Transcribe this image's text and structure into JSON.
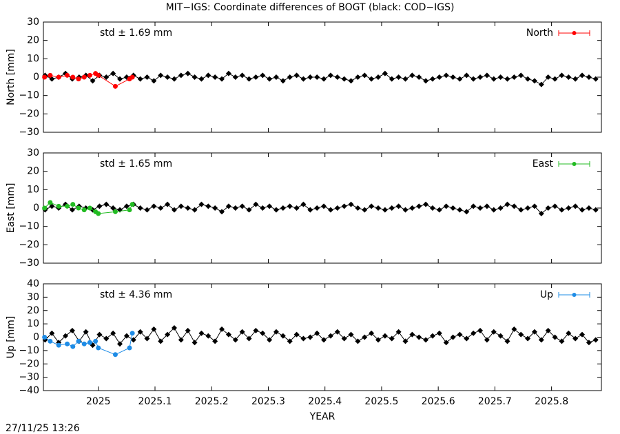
{
  "chart_data": [
    {
      "type": "line",
      "title": "MIT−IGS: Coordinate differences of BOGT (black: COD−IGS)",
      "ylabel": "North [mm]",
      "annotation": "std ± 1.69 mm",
      "annotation_color": "#ff0000",
      "xlim": [
        2024.903,
        2025.888
      ],
      "xticks": [
        2025,
        2025.1,
        2025.2,
        2025.3,
        2025.4,
        2025.5,
        2025.6,
        2025.7,
        2025.8
      ],
      "ylim": [
        -30,
        30
      ],
      "yticks": [
        {
          "value": -30,
          "label": "−30"
        },
        {
          "value": -20,
          "label": "−20"
        },
        {
          "value": -10,
          "label": "−10"
        },
        0,
        10,
        20,
        30
      ],
      "legend": "upper right",
      "series": [
        {
          "color": "#000000",
          "x": [
            2024.906,
            2024.918,
            2024.93,
            2024.942,
            2024.954,
            2024.966,
            2024.978,
            2024.99,
            2025.002,
            2025.014,
            2025.026,
            2025.038,
            2025.05,
            2025.062,
            2025.074,
            2025.086,
            2025.098,
            2025.11,
            2025.122,
            2025.134,
            2025.146,
            2025.158,
            2025.17,
            2025.182,
            2025.194,
            2025.206,
            2025.218,
            2025.23,
            2025.242,
            2025.254,
            2025.266,
            2025.278,
            2025.29,
            2025.302,
            2025.314,
            2025.326,
            2025.338,
            2025.35,
            2025.362,
            2025.374,
            2025.386,
            2025.398,
            2025.41,
            2025.422,
            2025.434,
            2025.446,
            2025.458,
            2025.47,
            2025.482,
            2025.494,
            2025.506,
            2025.518,
            2025.53,
            2025.542,
            2025.554,
            2025.566,
            2025.578,
            2025.59,
            2025.602,
            2025.614,
            2025.626,
            2025.638,
            2025.65,
            2025.662,
            2025.674,
            2025.686,
            2025.698,
            2025.71,
            2025.722,
            2025.734,
            2025.746,
            2025.758,
            2025.77,
            2025.782,
            2025.794,
            2025.806,
            2025.818,
            2025.83,
            2025.842,
            2025.854,
            2025.866,
            2025.878
          ],
          "values": [
            1,
            -1,
            0,
            2,
            -1,
            0,
            1,
            -2,
            1,
            0,
            2,
            -1,
            0,
            1,
            -1,
            0,
            -2,
            1,
            0,
            -1,
            1,
            2,
            0,
            -1,
            1,
            0,
            -1,
            2,
            0,
            1,
            -1,
            0,
            1,
            -1,
            0,
            -2,
            0,
            1,
            -1,
            0,
            0,
            -1,
            1,
            0,
            -1,
            -2,
            0,
            1,
            -1,
            0,
            2,
            -1,
            0,
            -1,
            1,
            0,
            -2,
            -1,
            0,
            1,
            0,
            -1,
            1,
            -1,
            0,
            1,
            -1,
            0,
            -1,
            0,
            1,
            -1,
            -2,
            -4,
            0,
            -1,
            1,
            0,
            -1,
            1,
            0,
            -1
          ]
        },
        {
          "name": "North",
          "color": "#ff0000",
          "x": [
            2024.905,
            2024.915,
            2024.93,
            2024.945,
            2024.955,
            2024.965,
            2024.975,
            2024.985,
            2024.995,
            2025.0,
            2025.03,
            2025.055,
            2025.06
          ],
          "values": [
            0,
            1,
            0,
            1,
            0,
            -1,
            0,
            1,
            2,
            1,
            -5,
            -1,
            0
          ]
        }
      ]
    },
    {
      "type": "line",
      "ylabel": "East [mm]",
      "annotation": "std ± 1.65 mm",
      "annotation_color": "#22bb22",
      "xlim": [
        2024.903,
        2025.888
      ],
      "xticks": [
        2025,
        2025.1,
        2025.2,
        2025.3,
        2025.4,
        2025.5,
        2025.6,
        2025.7,
        2025.8
      ],
      "ylim": [
        -30,
        30
      ],
      "yticks": [
        {
          "value": -30,
          "label": "−30"
        },
        {
          "value": -20,
          "label": "−20"
        },
        {
          "value": -10,
          "label": "−10"
        },
        0,
        10,
        20,
        30
      ],
      "legend": "upper right",
      "series": [
        {
          "color": "#000000",
          "x": [
            2024.906,
            2024.918,
            2024.93,
            2024.942,
            2024.954,
            2024.966,
            2024.978,
            2024.99,
            2025.002,
            2025.014,
            2025.026,
            2025.038,
            2025.05,
            2025.062,
            2025.074,
            2025.086,
            2025.098,
            2025.11,
            2025.122,
            2025.134,
            2025.146,
            2025.158,
            2025.17,
            2025.182,
            2025.194,
            2025.206,
            2025.218,
            2025.23,
            2025.242,
            2025.254,
            2025.266,
            2025.278,
            2025.29,
            2025.302,
            2025.314,
            2025.326,
            2025.338,
            2025.35,
            2025.362,
            2025.374,
            2025.386,
            2025.398,
            2025.41,
            2025.422,
            2025.434,
            2025.446,
            2025.458,
            2025.47,
            2025.482,
            2025.494,
            2025.506,
            2025.518,
            2025.53,
            2025.542,
            2025.554,
            2025.566,
            2025.578,
            2025.59,
            2025.602,
            2025.614,
            2025.626,
            2025.638,
            2025.65,
            2025.662,
            2025.674,
            2025.686,
            2025.698,
            2025.71,
            2025.722,
            2025.734,
            2025.746,
            2025.758,
            2025.77,
            2025.782,
            2025.794,
            2025.806,
            2025.818,
            2025.83,
            2025.842,
            2025.854,
            2025.866,
            2025.878
          ],
          "values": [
            -1,
            1,
            0,
            2,
            -1,
            1,
            0,
            -1,
            1,
            2,
            0,
            -1,
            1,
            2,
            0,
            -1,
            1,
            0,
            2,
            -1,
            1,
            0,
            -1,
            2,
            1,
            0,
            -2,
            1,
            0,
            1,
            -1,
            2,
            0,
            1,
            -1,
            0,
            1,
            0,
            2,
            -1,
            0,
            1,
            -1,
            0,
            1,
            2,
            0,
            -1,
            1,
            0,
            -1,
            0,
            1,
            -1,
            0,
            1,
            2,
            0,
            -1,
            1,
            0,
            -1,
            -2,
            1,
            0,
            1,
            -1,
            0,
            2,
            1,
            -1,
            0,
            1,
            -3,
            0,
            1,
            -1,
            0,
            1,
            -1,
            0,
            -1
          ]
        },
        {
          "name": "East",
          "color": "#22bb22",
          "x": [
            2024.905,
            2024.915,
            2024.93,
            2024.945,
            2024.955,
            2024.965,
            2024.975,
            2024.985,
            2024.995,
            2025.0,
            2025.03,
            2025.055,
            2025.06
          ],
          "values": [
            0,
            3,
            1,
            1,
            2,
            0,
            -1,
            0,
            -2,
            -3,
            -2,
            -1,
            2
          ]
        }
      ]
    },
    {
      "type": "line",
      "ylabel": "Up [mm]",
      "xlabel": "YEAR",
      "annotation": "std ± 4.36 mm",
      "annotation_color": "#1e8ce6",
      "xlim": [
        2024.903,
        2025.888
      ],
      "xticks": [
        2025,
        2025.1,
        2025.2,
        2025.3,
        2025.4,
        2025.5,
        2025.6,
        2025.7,
        2025.8
      ],
      "ylim": [
        -40,
        40
      ],
      "yticks": [
        {
          "value": -40,
          "label": "−40"
        },
        {
          "value": -30,
          "label": "−30"
        },
        {
          "value": -20,
          "label": "−20"
        },
        {
          "value": -10,
          "label": "−10"
        },
        0,
        10,
        20,
        30,
        40
      ],
      "legend": "upper right",
      "series": [
        {
          "color": "#000000",
          "x": [
            2024.906,
            2024.918,
            2024.93,
            2024.942,
            2024.954,
            2024.966,
            2024.978,
            2024.99,
            2025.002,
            2025.014,
            2025.026,
            2025.038,
            2025.05,
            2025.062,
            2025.074,
            2025.086,
            2025.098,
            2025.11,
            2025.122,
            2025.134,
            2025.146,
            2025.158,
            2025.17,
            2025.182,
            2025.194,
            2025.206,
            2025.218,
            2025.23,
            2025.242,
            2025.254,
            2025.266,
            2025.278,
            2025.29,
            2025.302,
            2025.314,
            2025.326,
            2025.338,
            2025.35,
            2025.362,
            2025.374,
            2025.386,
            2025.398,
            2025.41,
            2025.422,
            2025.434,
            2025.446,
            2025.458,
            2025.47,
            2025.482,
            2025.494,
            2025.506,
            2025.518,
            2025.53,
            2025.542,
            2025.554,
            2025.566,
            2025.578,
            2025.59,
            2025.602,
            2025.614,
            2025.626,
            2025.638,
            2025.65,
            2025.662,
            2025.674,
            2025.686,
            2025.698,
            2025.71,
            2025.722,
            2025.734,
            2025.746,
            2025.758,
            2025.77,
            2025.782,
            2025.794,
            2025.806,
            2025.818,
            2025.83,
            2025.842,
            2025.854,
            2025.866,
            2025.878
          ],
          "values": [
            -2,
            3,
            -4,
            1,
            5,
            -3,
            4,
            -6,
            2,
            -1,
            3,
            -5,
            1,
            -2,
            4,
            -1,
            6,
            -3,
            2,
            7,
            -2,
            5,
            -4,
            3,
            1,
            -3,
            6,
            2,
            -2,
            4,
            -1,
            5,
            3,
            -2,
            4,
            1,
            -3,
            2,
            -1,
            0,
            3,
            -2,
            1,
            4,
            -1,
            2,
            -3,
            0,
            3,
            -2,
            1,
            -1,
            4,
            -3,
            2,
            0,
            -2,
            1,
            3,
            -4,
            0,
            2,
            -1,
            3,
            5,
            -2,
            4,
            1,
            -3,
            6,
            2,
            -1,
            4,
            -2,
            5,
            0,
            -3,
            3,
            -1,
            2,
            -4,
            -2
          ]
        },
        {
          "name": "Up",
          "color": "#1e8ce6",
          "x": [
            2024.905,
            2024.915,
            2024.93,
            2024.945,
            2024.955,
            2024.965,
            2024.975,
            2024.985,
            2024.995,
            2025.0,
            2025.03,
            2025.055,
            2025.06
          ],
          "values": [
            0,
            -3,
            -6,
            -5,
            -7,
            -3,
            -5,
            -4,
            -3,
            -8,
            -13,
            -8,
            3
          ]
        }
      ]
    }
  ],
  "timestamp": "27/11/25 13:26"
}
